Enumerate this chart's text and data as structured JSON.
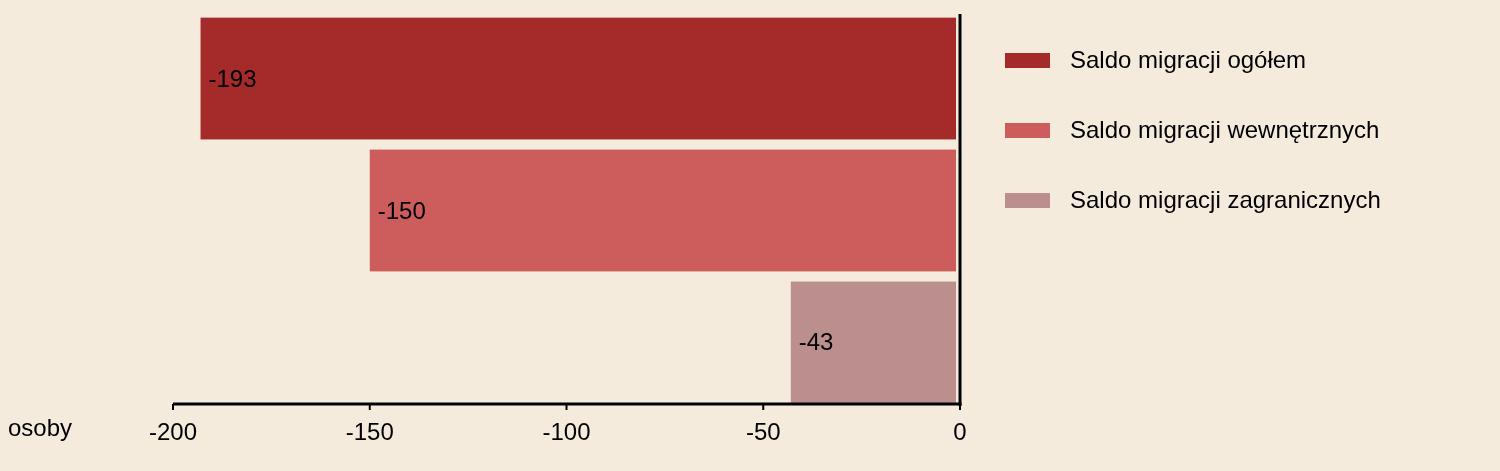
{
  "chart_data": {
    "type": "bar",
    "orientation": "horizontal",
    "categories": [
      null,
      null,
      null
    ],
    "series": [
      {
        "name": "Saldo migracji ogółem",
        "color": "#a52a2a",
        "values": [
          -193,
          null,
          null
        ]
      },
      {
        "name": "Saldo migracji wewnętrznych",
        "color": "#cd5c5c",
        "values": [
          null,
          -150,
          null
        ]
      },
      {
        "name": "Saldo migracji zagranicznych",
        "color": "#bc8f8f",
        "values": [
          null,
          null,
          -43
        ]
      }
    ],
    "xlabel": "osoby",
    "xlim": [
      -200,
      0
    ],
    "xticks": [
      -200,
      -150,
      -100,
      -50,
      0
    ],
    "data_labels": true,
    "legend": "right",
    "grid": false
  }
}
